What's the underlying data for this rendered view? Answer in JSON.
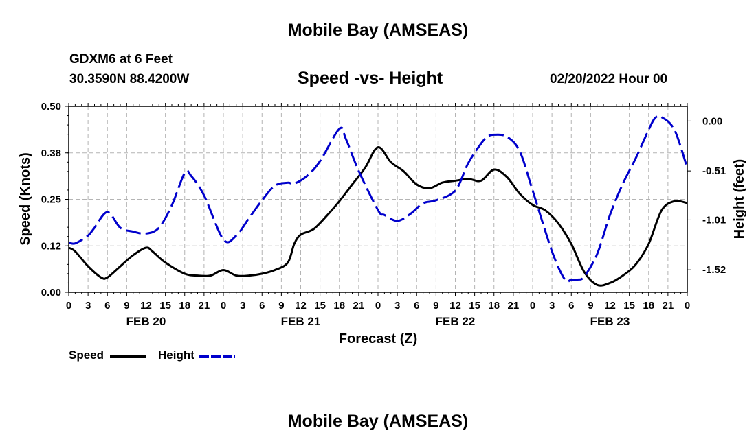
{
  "title": "Mobile Bay (AMSEAS)",
  "station": "GDXM6 at 6 Feet",
  "coordinates": "30.3590N  88.4200W",
  "chart_title": "Speed -vs- Height",
  "forecast_time": "02/20/2022 Hour 00",
  "bottom_title": "Mobile Bay (AMSEAS)",
  "legend": {
    "speed": "Speed",
    "height": "Height"
  },
  "colors": {
    "speed": "#000000",
    "height": "#0000cc",
    "grid": "#b4b4b4"
  },
  "chart_data": {
    "type": "line",
    "xlabel": "Forecast (Z)",
    "ylabel_left": "Speed (Knots)",
    "ylabel_right": "Height (feet)",
    "x_ticks": [
      "0",
      "3",
      "6",
      "9",
      "12",
      "15",
      "18",
      "21",
      "0",
      "3",
      "6",
      "9",
      "12",
      "15",
      "18",
      "21",
      "0",
      "3",
      "6",
      "9",
      "12",
      "15",
      "18",
      "21",
      "0",
      "3",
      "6",
      "9",
      "12",
      "15",
      "18",
      "21",
      "0"
    ],
    "day_labels": [
      {
        "label": "FEB 20",
        "hour": 12
      },
      {
        "label": "FEB 21",
        "hour": 36
      },
      {
        "label": "FEB 22",
        "hour": 60
      },
      {
        "label": "FEB 23",
        "hour": 84
      }
    ],
    "x_range_hours": [
      0,
      96
    ],
    "y_left": {
      "range": [
        0,
        0.5
      ],
      "ticks": [
        "0.00",
        "0.12",
        "0.25",
        "0.38",
        "0.50"
      ],
      "tick_values": [
        0,
        0.125,
        0.25,
        0.375,
        0.5
      ]
    },
    "y_right": {
      "range": [
        -1.75,
        0.15
      ],
      "ticks": [
        "0.00",
        "-0.51",
        "-1.01",
        "-1.52"
      ],
      "tick_values": [
        0.0,
        -0.51,
        -1.01,
        -1.52
      ]
    },
    "grid": true,
    "series": [
      {
        "name": "Speed",
        "axis": "left",
        "style": "solid",
        "x": [
          0,
          1,
          3,
          5,
          6,
          8,
          10,
          12,
          13,
          15,
          18,
          20,
          22,
          24,
          26,
          28,
          30,
          32,
          34,
          35,
          36,
          38,
          40,
          42,
          44,
          46,
          48,
          50,
          52,
          54,
          56,
          58,
          60,
          62,
          64,
          66,
          68,
          70,
          72,
          74,
          76,
          78,
          80,
          82,
          84,
          86,
          88,
          90,
          92,
          94,
          96
        ],
        "y": [
          0.12,
          0.11,
          0.07,
          0.04,
          0.04,
          0.07,
          0.1,
          0.12,
          0.11,
          0.08,
          0.05,
          0.045,
          0.045,
          0.06,
          0.045,
          0.045,
          0.05,
          0.06,
          0.08,
          0.13,
          0.155,
          0.17,
          0.205,
          0.245,
          0.29,
          0.335,
          0.39,
          0.35,
          0.325,
          0.29,
          0.28,
          0.295,
          0.3,
          0.305,
          0.3,
          0.33,
          0.31,
          0.265,
          0.235,
          0.22,
          0.185,
          0.13,
          0.055,
          0.02,
          0.025,
          0.045,
          0.075,
          0.13,
          0.22,
          0.245,
          0.24
        ]
      },
      {
        "name": "Height",
        "axis": "right",
        "style": "dashed",
        "x": [
          0,
          1,
          3,
          4,
          6,
          8,
          10,
          12,
          14,
          16,
          18,
          19,
          21,
          24,
          26,
          28,
          30,
          32,
          34,
          35,
          37,
          39,
          42,
          43,
          45,
          48,
          49,
          51,
          53,
          55,
          57,
          60,
          62,
          64,
          65,
          66,
          68,
          70,
          72,
          75,
          77,
          78,
          79,
          80,
          82,
          84,
          86,
          88,
          90,
          91,
          92,
          94,
          96
        ],
        "y": [
          -1.24,
          -1.25,
          -1.17,
          -1.09,
          -0.93,
          -1.09,
          -1.13,
          -1.15,
          -1.09,
          -0.86,
          -0.53,
          -0.56,
          -0.76,
          -1.21,
          -1.17,
          -0.99,
          -0.81,
          -0.66,
          -0.63,
          -0.64,
          -0.56,
          -0.41,
          -0.08,
          -0.18,
          -0.51,
          -0.91,
          -0.96,
          -1.02,
          -0.95,
          -0.84,
          -0.81,
          -0.71,
          -0.43,
          -0.23,
          -0.16,
          -0.14,
          -0.16,
          -0.31,
          -0.71,
          -1.33,
          -1.62,
          -1.62,
          -1.62,
          -1.59,
          -1.36,
          -0.96,
          -0.64,
          -0.38,
          -0.09,
          0.03,
          0.04,
          -0.09,
          -0.48
        ]
      }
    ]
  }
}
